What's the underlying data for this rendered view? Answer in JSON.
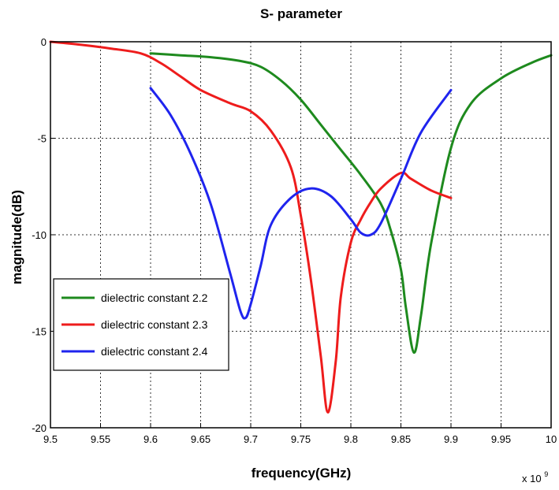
{
  "chart_data": {
    "type": "line",
    "title": "S- parameter",
    "xlabel": "frequency(GHz)",
    "ylabel": "magnitude(dB)",
    "x_multiplier": "x 10",
    "x_multiplier_exponent": "9",
    "xlim": [
      9.5,
      10.0
    ],
    "ylim": [
      -20,
      0
    ],
    "xticks": [
      9.5,
      9.55,
      9.6,
      9.65,
      9.7,
      9.75,
      9.8,
      9.85,
      9.9,
      9.95,
      10.0
    ],
    "xtick_labels": [
      "9.5",
      "9.55",
      "9.6",
      "9.65",
      "9.7",
      "9.75",
      "9.8",
      "9.85",
      "9.9",
      "9.95",
      "10"
    ],
    "yticks": [
      0,
      -5,
      -10,
      -15,
      -20
    ],
    "ytick_labels": [
      "0",
      "-5",
      "-10",
      "-15",
      "-20"
    ],
    "grid": true,
    "legend_position": "bottom-left",
    "series": [
      {
        "name": "dielectric constant 2.2",
        "color": "#1e8a1e",
        "x": [
          9.6,
          9.63,
          9.66,
          9.69,
          9.71,
          9.73,
          9.75,
          9.77,
          9.79,
          9.81,
          9.83,
          9.84,
          9.85,
          9.855,
          9.863,
          9.87,
          9.88,
          9.9,
          9.92,
          9.95,
          9.98,
          10.0
        ],
        "y": [
          -0.6,
          -0.7,
          -0.8,
          -1.0,
          -1.3,
          -2.0,
          -3.0,
          -4.3,
          -5.6,
          -6.9,
          -8.4,
          -9.8,
          -11.8,
          -13.8,
          -16.1,
          -14.2,
          -10.5,
          -5.5,
          -3.2,
          -1.9,
          -1.1,
          -0.7
        ]
      },
      {
        "name": "dielectric constant 2.3",
        "color": "#ee1c1c",
        "x": [
          9.5,
          9.53,
          9.56,
          9.59,
          9.61,
          9.63,
          9.65,
          9.68,
          9.7,
          9.72,
          9.74,
          9.75,
          9.76,
          9.77,
          9.777,
          9.785,
          9.79,
          9.8,
          9.81,
          9.82,
          9.83,
          9.85,
          9.86,
          9.88,
          9.9
        ],
        "y": [
          0.0,
          -0.15,
          -0.35,
          -0.6,
          -1.1,
          -1.8,
          -2.5,
          -3.2,
          -3.6,
          -4.6,
          -6.5,
          -9.0,
          -12.3,
          -16.3,
          -19.2,
          -16.5,
          -13.2,
          -10.4,
          -9.2,
          -8.3,
          -7.6,
          -6.8,
          -7.1,
          -7.7,
          -8.1
        ]
      },
      {
        "name": "dielectric constant 2.4",
        "color": "#1f24ee",
        "x": [
          9.6,
          9.62,
          9.64,
          9.66,
          9.68,
          9.69,
          9.695,
          9.7,
          9.71,
          9.72,
          9.74,
          9.76,
          9.78,
          9.8,
          9.81,
          9.82,
          9.83,
          9.85,
          9.87,
          9.9
        ],
        "y": [
          -2.4,
          -3.8,
          -5.8,
          -8.4,
          -12.1,
          -14.0,
          -14.3,
          -13.6,
          -11.6,
          -9.5,
          -8.1,
          -7.6,
          -8.0,
          -9.2,
          -9.9,
          -10.0,
          -9.4,
          -7.1,
          -4.7,
          -2.5
        ]
      }
    ]
  }
}
